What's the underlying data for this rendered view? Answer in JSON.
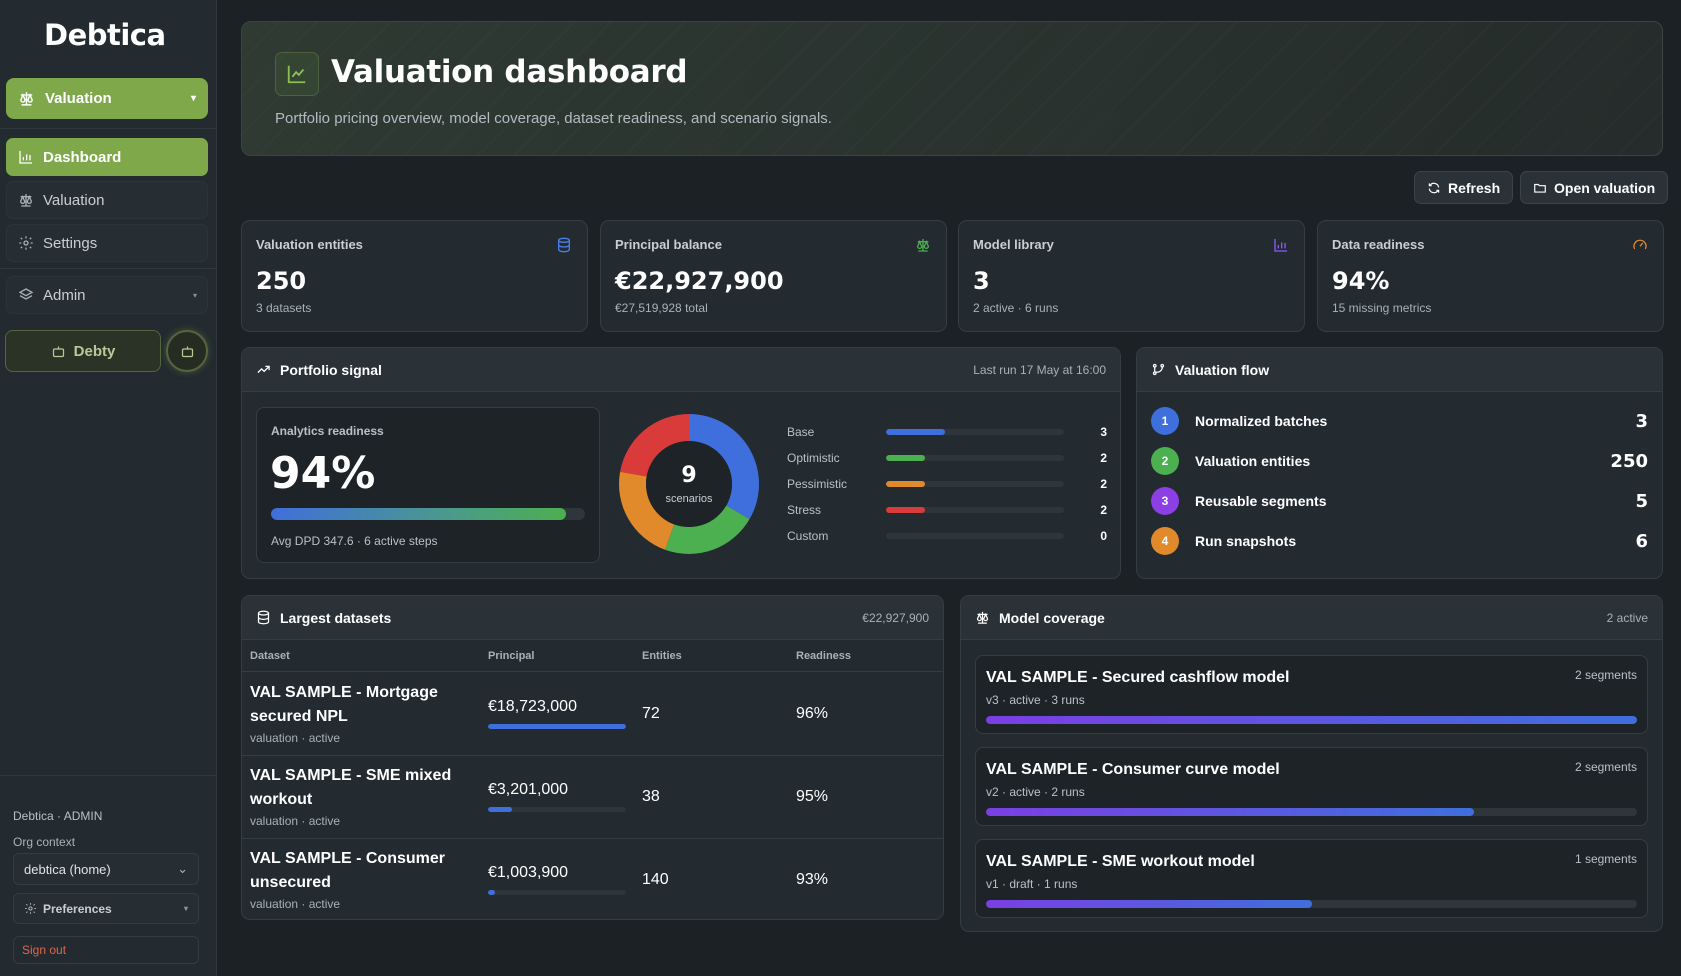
{
  "app": {
    "logo": "Debtica"
  },
  "sidebar": {
    "module": "Valuation",
    "nav": [
      {
        "label": "Dashboard",
        "icon": "bar-chart-icon",
        "active": true
      },
      {
        "label": "Valuation",
        "icon": "scale-icon"
      },
      {
        "label": "Settings",
        "icon": "gear-icon"
      },
      {
        "label": "Admin",
        "icon": "layers-icon"
      }
    ],
    "assistant": "Debty",
    "org_line": "Debtica · ADMIN",
    "org_label": "Org context",
    "org_value": "debtica (home)",
    "preferences": "Preferences",
    "sign_out": "Sign out"
  },
  "hero": {
    "title": "Valuation dashboard",
    "subtitle": "Portfolio pricing overview, model coverage, dataset readiness, and scenario signals."
  },
  "actions": {
    "refresh": "Refresh",
    "open": "Open valuation"
  },
  "kpis": [
    {
      "label": "Valuation entities",
      "value": "250",
      "sub": "3 datasets",
      "icon": "database-icon",
      "color": "#4a7fe8"
    },
    {
      "label": "Principal balance",
      "value": "€22,927,900",
      "sub": "€27,519,928 total",
      "icon": "scale-icon",
      "color": "#4caf50"
    },
    {
      "label": "Model library",
      "value": "3",
      "sub": "2 active · 6 runs",
      "icon": "bar-chart-icon",
      "color": "#8b5cf6"
    },
    {
      "label": "Data readiness",
      "value": "94%",
      "sub": "15 missing metrics",
      "icon": "gauge-icon",
      "color": "#e08a2c"
    }
  ],
  "signal": {
    "title": "Portfolio signal",
    "meta": "Last run 17 May at 16:00",
    "readiness_label": "Analytics readiness",
    "readiness_value": "94%",
    "readiness_fraction": 0.94,
    "readiness_sub": "Avg DPD 347.6 · 6 active steps",
    "donut_total": "9",
    "donut_label": "scenarios",
    "scenarios": [
      {
        "name": "Base",
        "count": "3",
        "value": 3,
        "color": "#3f6fdc"
      },
      {
        "name": "Optimistic",
        "count": "2",
        "value": 2,
        "color": "#4caf50"
      },
      {
        "name": "Pessimistic",
        "count": "2",
        "value": 2,
        "color": "#e08a2c"
      },
      {
        "name": "Stress",
        "count": "2",
        "value": 2,
        "color": "#d93a3a"
      },
      {
        "name": "Custom",
        "count": "0",
        "value": 0,
        "color": "#8a939b"
      }
    ]
  },
  "flow": {
    "title": "Valuation flow",
    "steps": [
      {
        "num": "1",
        "label": "Normalized batches",
        "count": "3",
        "color": "#3f6fdc"
      },
      {
        "num": "2",
        "label": "Valuation entities",
        "count": "250",
        "color": "#4caf50"
      },
      {
        "num": "3",
        "label": "Reusable segments",
        "count": "5",
        "color": "#8b3fe4"
      },
      {
        "num": "4",
        "label": "Run snapshots",
        "count": "6",
        "color": "#e08a2c"
      }
    ]
  },
  "datasets": {
    "title": "Largest datasets",
    "meta": "€22,927,900",
    "columns": [
      "Dataset",
      "Principal",
      "Entities",
      "Readiness"
    ],
    "rows": [
      {
        "name": "VAL SAMPLE - Mortgage secured NPL",
        "sub": "valuation · active",
        "principal": "€18,723,000",
        "share": 1.0,
        "entities": "72",
        "readiness": "96%"
      },
      {
        "name": "VAL SAMPLE - SME mixed workout",
        "sub": "valuation · active",
        "principal": "€3,201,000",
        "share": 0.171,
        "entities": "38",
        "readiness": "95%"
      },
      {
        "name": "VAL SAMPLE - Consumer unsecured",
        "sub": "valuation · active",
        "principal": "€1,003,900",
        "share": 0.054,
        "entities": "140",
        "readiness": "93%"
      }
    ]
  },
  "models": {
    "title": "Model coverage",
    "meta": "2 active",
    "items": [
      {
        "name": "VAL SAMPLE - Secured cashflow model",
        "sub": "v3 · active · 3 runs",
        "segments": "2 segments",
        "coverage": 1.0
      },
      {
        "name": "VAL SAMPLE - Consumer curve model",
        "sub": "v2 · active · 2 runs",
        "segments": "2 segments",
        "coverage": 0.75
      },
      {
        "name": "VAL SAMPLE - SME workout model",
        "sub": "v1 · draft · 1 runs",
        "segments": "1 segments",
        "coverage": 0.5
      }
    ]
  }
}
